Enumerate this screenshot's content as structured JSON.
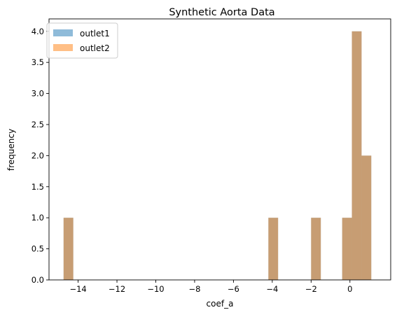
{
  "chart_data": {
    "type": "bar",
    "title": "Synthetic Aorta Data",
    "xlabel": "coef_a",
    "ylabel": "frequency",
    "xlim": [
      -15.5,
      2.1
    ],
    "ylim": [
      0,
      4.2
    ],
    "xticks": [
      -14,
      -12,
      -10,
      -8,
      -6,
      -4,
      -2,
      0
    ],
    "xtick_labels": [
      "−14",
      "−12",
      "−10",
      "−8",
      "−6",
      "−4",
      "−2",
      "0"
    ],
    "yticks": [
      0.0,
      0.5,
      1.0,
      1.5,
      2.0,
      2.5,
      3.0,
      3.5,
      4.0
    ],
    "ytick_labels": [
      "0.0",
      "0.5",
      "1.0",
      "1.5",
      "2.0",
      "2.5",
      "3.0",
      "3.5",
      "4.0"
    ],
    "grid": false,
    "legend_position": "top-left",
    "bin_width": 0.5,
    "series": [
      {
        "name": "outlet1",
        "color": "#1f77b4",
        "alpha": 0.5,
        "bins": [
          {
            "start": -14.75,
            "count": 1
          },
          {
            "start": -4.2,
            "count": 1
          },
          {
            "start": -2.0,
            "count": 1
          },
          {
            "start": -0.4,
            "count": 1
          },
          {
            "start": 0.1,
            "count": 4
          },
          {
            "start": 0.6,
            "count": 2
          }
        ]
      },
      {
        "name": "outlet2",
        "color": "#ff7f0e",
        "alpha": 0.5,
        "bins": [
          {
            "start": -14.75,
            "count": 1
          },
          {
            "start": -4.2,
            "count": 1
          },
          {
            "start": -2.0,
            "count": 1
          },
          {
            "start": -0.4,
            "count": 1
          },
          {
            "start": 0.1,
            "count": 4
          },
          {
            "start": 0.6,
            "count": 2
          }
        ]
      }
    ]
  }
}
